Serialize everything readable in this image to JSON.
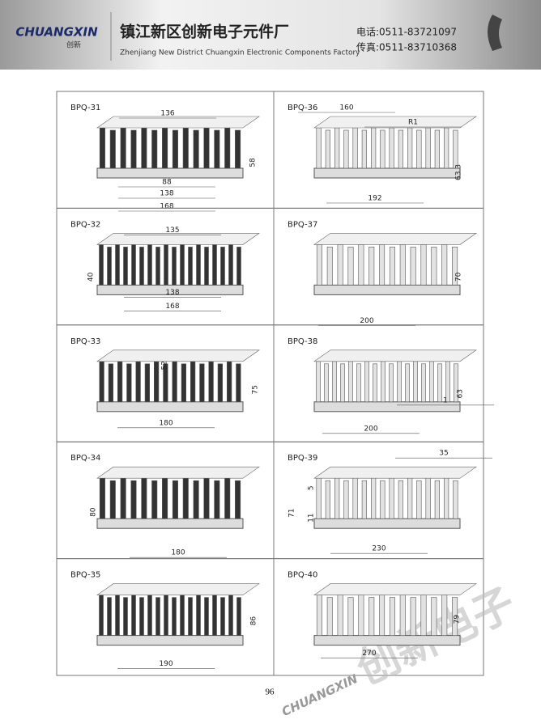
{
  "header": {
    "logo": "CHUANGXIN",
    "logo_sub": "创新",
    "title_cn": "镇江新区创新电子元件厂",
    "title_en": "Zhenjiang New District Chuangxin Electronic Components Factory",
    "phone": "电话:0511-83721097",
    "fax": "传真:0511-83710368"
  },
  "products": [
    {
      "code": "BPQ-31",
      "dims": [
        "136",
        "58",
        "88",
        "138",
        "168"
      ]
    },
    {
      "code": "BPQ-36",
      "dims": [
        "160",
        "R1",
        "63.3",
        "192"
      ]
    },
    {
      "code": "BPQ-32",
      "dims": [
        "135",
        "40",
        "138",
        "168"
      ]
    },
    {
      "code": "BPQ-37",
      "dims": [
        "70",
        "200"
      ]
    },
    {
      "code": "BPQ-33",
      "dims": [
        "52",
        "75",
        "180"
      ]
    },
    {
      "code": "BPQ-38",
      "dims": [
        "63",
        "1",
        "200"
      ]
    },
    {
      "code": "BPQ-34",
      "dims": [
        "80",
        "180"
      ]
    },
    {
      "code": "BPQ-39",
      "dims": [
        "35",
        "5",
        "71",
        "11",
        "230"
      ]
    },
    {
      "code": "BPQ-35",
      "dims": [
        "86",
        "190"
      ]
    },
    {
      "code": "BPQ-40",
      "dims": [
        "79",
        "270"
      ]
    }
  ],
  "page_number": "96",
  "watermark": "创新电子",
  "watermark_logo": "CHUANGXIN"
}
